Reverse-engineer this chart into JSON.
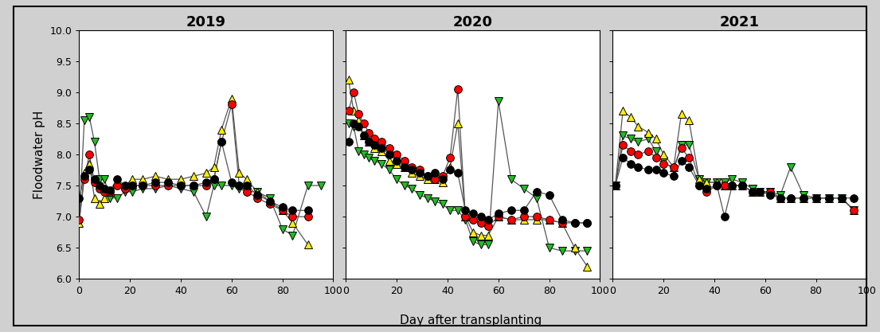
{
  "years": [
    "2019",
    "2020",
    "2021"
  ],
  "ylabel": "Floodwater pH",
  "xlabel": "Day after transplanting",
  "ylim": [
    6.0,
    10.0
  ],
  "xlim": [
    0,
    100
  ],
  "yticks": [
    6.0,
    6.5,
    7.0,
    7.5,
    8.0,
    8.5,
    9.0,
    9.5,
    10.0
  ],
  "xticks": [
    0,
    20,
    40,
    60,
    80,
    100
  ],
  "colors": {
    "black": "#000000",
    "red": "#ff0000",
    "yellow": "#ffee00",
    "green": "#22bb22"
  },
  "markers": {
    "black": "o",
    "red": "o",
    "yellow": "^",
    "green": "v"
  },
  "series_order": [
    "green",
    "yellow",
    "red",
    "black"
  ],
  "data_2019": {
    "black": {
      "x": [
        0,
        2,
        4,
        6,
        8,
        10,
        12,
        15,
        18,
        21,
        25,
        30,
        35,
        40,
        45,
        50,
        53,
        56,
        60,
        63,
        66,
        70,
        75,
        80,
        84,
        90
      ],
      "y": [
        7.3,
        7.65,
        7.75,
        7.6,
        7.5,
        7.45,
        7.42,
        7.6,
        7.5,
        7.5,
        7.5,
        7.55,
        7.55,
        7.5,
        7.5,
        7.55,
        7.6,
        8.2,
        7.55,
        7.5,
        7.5,
        7.35,
        7.25,
        7.15,
        7.1,
        7.1
      ]
    },
    "red": {
      "x": [
        0,
        2,
        4,
        6,
        8,
        10,
        12,
        15,
        18,
        21,
        25,
        30,
        35,
        40,
        45,
        50,
        53,
        56,
        60,
        63,
        66,
        70,
        75,
        80,
        84,
        90
      ],
      "y": [
        6.95,
        7.6,
        8.0,
        7.55,
        7.45,
        7.4,
        7.4,
        7.5,
        7.45,
        7.5,
        7.5,
        7.5,
        7.5,
        7.5,
        7.5,
        7.5,
        7.6,
        8.2,
        8.8,
        7.5,
        7.4,
        7.3,
        7.2,
        7.1,
        7.0,
        7.0
      ]
    },
    "yellow": {
      "x": [
        0,
        2,
        4,
        6,
        8,
        10,
        12,
        15,
        18,
        21,
        25,
        30,
        35,
        40,
        45,
        50,
        53,
        56,
        60,
        63,
        66,
        70,
        75,
        80,
        84,
        90
      ],
      "y": [
        6.9,
        7.7,
        7.85,
        7.3,
        7.2,
        7.3,
        7.4,
        7.55,
        7.5,
        7.6,
        7.6,
        7.65,
        7.6,
        7.6,
        7.65,
        7.7,
        7.8,
        8.4,
        8.9,
        7.7,
        7.6,
        7.4,
        7.25,
        7.1,
        6.9,
        6.55
      ]
    },
    "green": {
      "x": [
        0,
        2,
        4,
        6,
        8,
        10,
        12,
        15,
        18,
        21,
        25,
        30,
        35,
        40,
        45,
        50,
        53,
        56,
        60,
        63,
        66,
        70,
        75,
        80,
        84,
        90,
        95
      ],
      "y": [
        6.9,
        8.55,
        8.6,
        8.2,
        7.6,
        7.6,
        7.3,
        7.3,
        7.4,
        7.4,
        7.45,
        7.45,
        7.5,
        7.45,
        7.4,
        7.0,
        7.5,
        7.5,
        7.5,
        7.45,
        7.4,
        7.4,
        7.3,
        6.8,
        6.7,
        7.5,
        7.5
      ]
    }
  },
  "data_2020": {
    "black": {
      "x": [
        1,
        3,
        5,
        7,
        9,
        11,
        14,
        17,
        20,
        23,
        26,
        29,
        32,
        35,
        38,
        41,
        44,
        47,
        50,
        53,
        56,
        60,
        65,
        70,
        75,
        80,
        85,
        90,
        95
      ],
      "y": [
        8.2,
        8.5,
        8.45,
        8.3,
        8.2,
        8.15,
        8.1,
        8.0,
        7.9,
        7.8,
        7.75,
        7.7,
        7.65,
        7.7,
        7.6,
        7.75,
        7.7,
        7.1,
        7.05,
        7.0,
        6.95,
        7.05,
        7.1,
        7.1,
        7.4,
        7.35,
        6.95,
        6.9,
        6.9
      ]
    },
    "red": {
      "x": [
        1,
        3,
        5,
        7,
        9,
        11,
        14,
        17,
        20,
        23,
        26,
        29,
        32,
        35,
        38,
        41,
        44,
        47,
        50,
        53,
        56,
        60,
        65,
        70,
        75,
        80,
        85,
        90,
        95
      ],
      "y": [
        8.7,
        9.0,
        8.65,
        8.5,
        8.35,
        8.25,
        8.2,
        8.1,
        8.0,
        7.9,
        7.8,
        7.75,
        7.65,
        7.6,
        7.65,
        7.95,
        9.05,
        7.0,
        6.95,
        6.9,
        6.85,
        7.0,
        6.95,
        7.0,
        7.0,
        6.95,
        6.9,
        6.9,
        6.9
      ]
    },
    "yellow": {
      "x": [
        1,
        3,
        5,
        7,
        9,
        11,
        14,
        17,
        20,
        23,
        26,
        29,
        32,
        35,
        38,
        41,
        44,
        47,
        50,
        53,
        56,
        60,
        65,
        70,
        75,
        80,
        85,
        90,
        95
      ],
      "y": [
        9.2,
        8.7,
        8.55,
        8.3,
        8.2,
        8.1,
        8.05,
        7.9,
        7.85,
        7.8,
        7.7,
        7.65,
        7.6,
        7.6,
        7.55,
        7.8,
        8.5,
        7.0,
        6.75,
        6.7,
        6.7,
        7.0,
        6.95,
        6.95,
        6.95,
        6.95,
        6.9,
        6.5,
        6.2
      ]
    },
    "green": {
      "x": [
        1,
        3,
        5,
        7,
        9,
        11,
        14,
        17,
        20,
        23,
        26,
        29,
        32,
        35,
        38,
        41,
        44,
        47,
        50,
        53,
        56,
        60,
        65,
        70,
        75,
        80,
        85,
        90,
        95
      ],
      "y": [
        8.5,
        8.45,
        8.05,
        8.0,
        7.95,
        7.9,
        7.85,
        7.75,
        7.6,
        7.5,
        7.45,
        7.35,
        7.3,
        7.25,
        7.2,
        7.1,
        7.1,
        6.95,
        6.6,
        6.55,
        6.55,
        8.85,
        7.6,
        7.45,
        7.3,
        6.5,
        6.45,
        6.45,
        6.45
      ]
    }
  },
  "data_2021": {
    "black": {
      "x": [
        1,
        4,
        7,
        10,
        14,
        17,
        20,
        24,
        27,
        30,
        34,
        37,
        41,
        44,
        47,
        51,
        55,
        58,
        62,
        66,
        70,
        75,
        80,
        85,
        90,
        95
      ],
      "y": [
        7.5,
        7.95,
        7.85,
        7.8,
        7.75,
        7.75,
        7.7,
        7.65,
        7.9,
        7.8,
        7.5,
        7.45,
        7.5,
        7.0,
        7.5,
        7.5,
        7.4,
        7.4,
        7.35,
        7.3,
        7.3,
        7.3,
        7.3,
        7.3,
        7.3,
        7.3
      ]
    },
    "red": {
      "x": [
        1,
        4,
        7,
        10,
        14,
        17,
        20,
        24,
        27,
        30,
        34,
        37,
        41,
        44,
        47,
        51,
        55,
        58,
        62,
        66,
        70,
        75,
        80,
        85,
        90,
        95
      ],
      "y": [
        7.5,
        8.15,
        8.05,
        8.0,
        8.05,
        7.95,
        7.85,
        7.8,
        8.1,
        7.95,
        7.5,
        7.4,
        7.5,
        7.5,
        7.5,
        7.5,
        7.4,
        7.4,
        7.4,
        7.3,
        7.3,
        7.3,
        7.3,
        7.3,
        7.3,
        7.1
      ]
    },
    "yellow": {
      "x": [
        1,
        4,
        7,
        10,
        14,
        17,
        20,
        24,
        27,
        30,
        34,
        37,
        41,
        44,
        47,
        51,
        55,
        58,
        62,
        66,
        70,
        75,
        80,
        85,
        90,
        95
      ],
      "y": [
        7.5,
        8.7,
        8.6,
        8.45,
        8.35,
        8.25,
        8.0,
        7.8,
        8.65,
        8.55,
        7.6,
        7.55,
        7.55,
        7.5,
        7.5,
        7.5,
        7.4,
        7.4,
        7.4,
        7.3,
        7.3,
        7.3,
        7.3,
        7.3,
        7.3,
        7.1
      ]
    },
    "green": {
      "x": [
        1,
        4,
        7,
        10,
        14,
        17,
        20,
        24,
        27,
        30,
        34,
        37,
        41,
        44,
        47,
        51,
        55,
        58,
        62,
        66,
        70,
        75,
        80,
        85,
        90,
        95
      ],
      "y": [
        7.5,
        8.3,
        8.25,
        8.2,
        8.25,
        8.05,
        7.9,
        7.75,
        8.15,
        8.15,
        7.6,
        7.55,
        7.55,
        7.55,
        7.6,
        7.55,
        7.45,
        7.4,
        7.4,
        7.35,
        7.8,
        7.35,
        7.3,
        7.3,
        7.3,
        7.1
      ]
    }
  },
  "lw": 0.9,
  "ms": 7,
  "mew": 0.7,
  "mec": "#000000",
  "line_color": "#555555",
  "bg_color": "#f0f0f0",
  "fig_bg": "#d8d8d8"
}
